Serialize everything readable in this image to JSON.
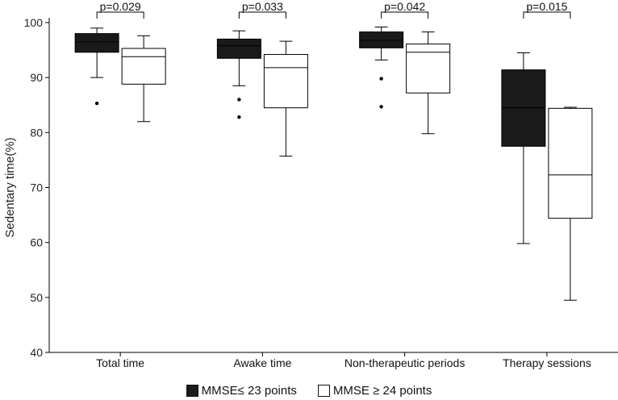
{
  "chart_data": {
    "type": "box",
    "ylabel": "Sedentary time(%)",
    "xlabel": "",
    "ylim": [
      40,
      100
    ],
    "yticks": [
      40,
      50,
      60,
      70,
      80,
      90,
      100
    ],
    "grid": false,
    "legend_position": "bottom",
    "categories": [
      "Total time",
      "Awake time",
      "Non-therapeutic periods",
      "Therapy sessions"
    ],
    "series": [
      {
        "name": "MMSE≤ 23 points",
        "color": "#1a1a1a",
        "boxes": [
          {
            "whisker_low": 90.0,
            "q1": 94.6,
            "median": 96.5,
            "q3": 98.0,
            "whisker_high": 99.0,
            "outliers": [
              85.3
            ]
          },
          {
            "whisker_low": 88.5,
            "q1": 93.5,
            "median": 95.8,
            "q3": 97.0,
            "whisker_high": 98.5,
            "outliers": [
              86.0,
              82.8
            ]
          },
          {
            "whisker_low": 93.2,
            "q1": 95.4,
            "median": 96.8,
            "q3": 98.3,
            "whisker_high": 99.2,
            "outliers": [
              89.8,
              84.7
            ]
          },
          {
            "whisker_low": 59.8,
            "q1": 77.5,
            "median": 84.5,
            "q3": 91.4,
            "whisker_high": 94.5,
            "outliers": []
          }
        ]
      },
      {
        "name": "MMSE ≥ 24 points",
        "color": "#ffffff",
        "boxes": [
          {
            "whisker_low": 82.0,
            "q1": 88.8,
            "median": 93.8,
            "q3": 95.3,
            "whisker_high": 97.6,
            "outliers": []
          },
          {
            "whisker_low": 75.7,
            "q1": 84.5,
            "median": 91.8,
            "q3": 94.2,
            "whisker_high": 96.6,
            "outliers": []
          },
          {
            "whisker_low": 79.8,
            "q1": 87.2,
            "median": 94.6,
            "q3": 96.1,
            "whisker_high": 98.3,
            "outliers": []
          },
          {
            "whisker_low": 49.5,
            "q1": 64.4,
            "median": 72.3,
            "q3": 84.4,
            "whisker_high": 84.6,
            "outliers": []
          }
        ]
      }
    ],
    "annotations": [
      "p=0.029",
      "p=0.033",
      "p=0.042",
      "p=0.015"
    ]
  },
  "legend": {
    "dark_label": "MMSE≤ 23 points",
    "light_label": "MMSE ≥ 24 points"
  }
}
